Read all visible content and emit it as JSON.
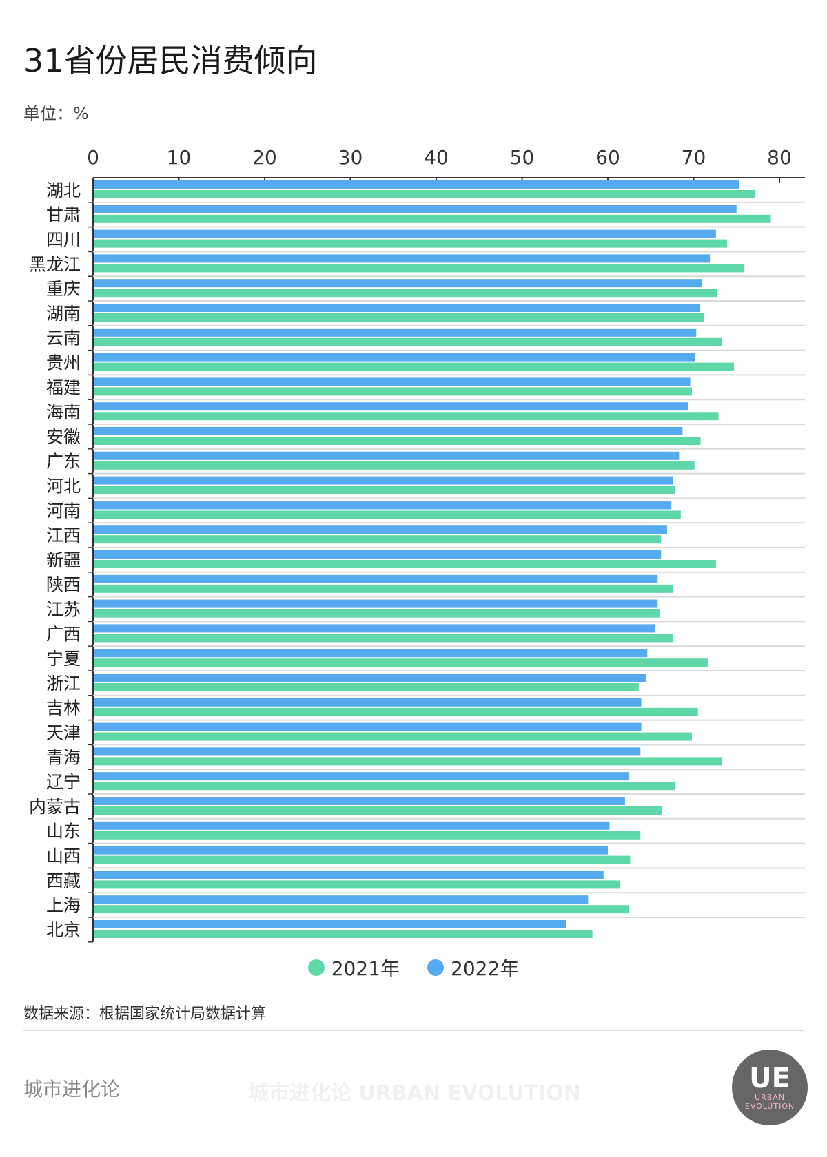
{
  "title": "31省份居民消费倾向",
  "unit": "单位：%",
  "source": "数据来源：根据国家统计局数据计算",
  "brand": "城市进化论",
  "logo_text": "UE",
  "logo_sub": "URBAN EVOLUTION",
  "watermark": "城市进化论 URBAN EVOLUTION",
  "colors": {
    "s2021": "#5fd8a9",
    "s2022": "#55aaf0",
    "grid": "#d9d9d9",
    "axis": "#333333"
  },
  "chart_data": {
    "type": "bar",
    "orientation": "horizontal",
    "title": "31省份居民消费倾向",
    "xlabel": "单位：%",
    "xlim": [
      0,
      83
    ],
    "xticks": [
      0,
      10,
      20,
      30,
      40,
      50,
      60,
      70,
      80
    ],
    "legend_position": "bottom",
    "categories": [
      "湖北",
      "甘肃",
      "四川",
      "黑龙江",
      "重庆",
      "湖南",
      "云南",
      "贵州",
      "福建",
      "海南",
      "安徽",
      "广东",
      "河北",
      "河南",
      "江西",
      "新疆",
      "陕西",
      "江苏",
      "广西",
      "宁夏",
      "浙江",
      "吉林",
      "天津",
      "青海",
      "辽宁",
      "内蒙古",
      "山东",
      "山西",
      "西藏",
      "上海",
      "北京"
    ],
    "series": [
      {
        "name": "2021年",
        "values": [
          77.2,
          79.0,
          73.9,
          75.9,
          72.7,
          71.2,
          73.3,
          74.7,
          69.8,
          72.9,
          70.8,
          70.1,
          67.8,
          68.5,
          66.2,
          72.6,
          67.6,
          66.1,
          67.6,
          71.7,
          63.6,
          70.5,
          69.8,
          73.3,
          67.8,
          66.3,
          63.8,
          62.6,
          61.4,
          62.5,
          58.2
        ]
      },
      {
        "name": "2022年",
        "values": [
          75.3,
          75.0,
          72.6,
          71.9,
          71.0,
          70.7,
          70.3,
          70.2,
          69.6,
          69.4,
          68.7,
          68.3,
          67.6,
          67.4,
          66.9,
          66.2,
          65.8,
          65.8,
          65.5,
          64.6,
          64.5,
          63.9,
          63.9,
          63.8,
          62.5,
          62.0,
          60.2,
          60.0,
          59.5,
          57.7,
          55.1
        ]
      }
    ]
  }
}
